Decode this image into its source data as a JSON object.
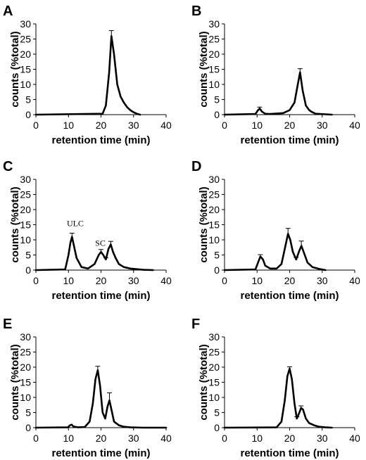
{
  "chart_data": [
    {
      "panel": "A",
      "type": "line",
      "xlabel": "retention time (min)",
      "ylabel": "counts (%total)",
      "xlim": [
        0,
        40
      ],
      "ylim": [
        0,
        30
      ],
      "xticks": [
        0,
        10,
        20,
        30,
        40
      ],
      "yticks": [
        0,
        5,
        10,
        15,
        20,
        25,
        30
      ],
      "x": [
        0,
        20.5,
        21.5,
        22.5,
        23.2,
        24,
        25,
        26,
        27,
        28,
        29,
        30,
        31,
        32
      ],
      "y": [
        0,
        0.3,
        3,
        14,
        26,
        20,
        10,
        6,
        4,
        2.5,
        1.5,
        0.8,
        0.3,
        0
      ],
      "error_bars": [
        {
          "x": 23.2,
          "y": 26,
          "err": 1.8
        }
      ],
      "annotations": []
    },
    {
      "panel": "B",
      "type": "line",
      "xlabel": "retention time (min)",
      "ylabel": "counts (%total)",
      "xlim": [
        0,
        40
      ],
      "ylim": [
        0,
        30
      ],
      "xticks": [
        0,
        10,
        20,
        30,
        40
      ],
      "yticks": [
        0,
        5,
        10,
        15,
        20,
        25,
        30
      ],
      "x": [
        0,
        9.5,
        10.3,
        10.8,
        11.5,
        12.5,
        14,
        18,
        20,
        21.5,
        22.5,
        23.2,
        24,
        25,
        26,
        27,
        28,
        33
      ],
      "y": [
        0,
        0.2,
        1.5,
        2,
        1,
        0.3,
        0.2,
        0.5,
        1.5,
        4,
        10,
        14,
        8,
        3,
        1.5,
        0.8,
        0.3,
        0
      ],
      "error_bars": [
        {
          "x": 10.8,
          "y": 2,
          "err": 0.5
        },
        {
          "x": 23.2,
          "y": 14,
          "err": 1.2
        }
      ],
      "annotations": []
    },
    {
      "panel": "C",
      "type": "line",
      "xlabel": "retention time (min)",
      "ylabel": "counts (%total)",
      "xlim": [
        0,
        40
      ],
      "ylim": [
        0,
        30
      ],
      "xticks": [
        0,
        10,
        20,
        30,
        40
      ],
      "yticks": [
        0,
        5,
        10,
        15,
        20,
        25,
        30
      ],
      "x": [
        0,
        9,
        10,
        10.6,
        11.1,
        11.7,
        12.5,
        14,
        16,
        18,
        19.3,
        20,
        20.7,
        21.5,
        22.3,
        23,
        23.7,
        24.5,
        25.5,
        27,
        29,
        31,
        33,
        36
      ],
      "y": [
        0,
        0.2,
        5,
        9,
        11,
        8,
        4,
        1,
        0.5,
        2,
        5,
        6,
        5,
        3.5,
        7,
        8.5,
        6,
        4,
        2,
        1,
        0.5,
        0.3,
        0.1,
        0
      ],
      "error_bars": [
        {
          "x": 11.1,
          "y": 11,
          "err": 1.2
        },
        {
          "x": 20,
          "y": 6,
          "err": 0.8
        },
        {
          "x": 21.5,
          "y": 3.5,
          "err": 0.6
        },
        {
          "x": 23,
          "y": 8.5,
          "err": 1.0
        }
      ],
      "annotations": [
        {
          "text": "ULC",
          "x": 9.5,
          "y": 14.5
        },
        {
          "text": "SC",
          "x": 18.2,
          "y": 8.0
        }
      ]
    },
    {
      "panel": "D",
      "type": "line",
      "xlabel": "retention time (min)",
      "ylabel": "counts (%total)",
      "xlim": [
        0,
        40
      ],
      "ylim": [
        0,
        30
      ],
      "xticks": [
        0,
        10,
        20,
        30,
        40
      ],
      "yticks": [
        0,
        5,
        10,
        15,
        20,
        25,
        30
      ],
      "x": [
        0,
        9.5,
        10.3,
        11,
        11.8,
        12.5,
        14,
        16,
        17.5,
        18.5,
        19.5,
        20.2,
        21,
        22,
        23,
        23.6,
        24.3,
        25.5,
        27,
        29,
        31
      ],
      "y": [
        0,
        0.2,
        2.5,
        4.5,
        3.5,
        1.5,
        0.5,
        0.5,
        2,
        7,
        12,
        10,
        6,
        3.5,
        6.5,
        8,
        6,
        2.5,
        1,
        0.4,
        0
      ],
      "error_bars": [
        {
          "x": 11,
          "y": 4.5,
          "err": 0.6
        },
        {
          "x": 19.5,
          "y": 12,
          "err": 1.8
        },
        {
          "x": 22,
          "y": 3.5,
          "err": 0.7
        },
        {
          "x": 23.6,
          "y": 8,
          "err": 1.6
        }
      ],
      "annotations": []
    },
    {
      "panel": "E",
      "type": "line",
      "xlabel": "retention time (min)",
      "ylabel": "counts (%total)",
      "xlim": [
        0,
        40
      ],
      "ylim": [
        0,
        30
      ],
      "xticks": [
        0,
        10,
        20,
        30,
        40
      ],
      "yticks": [
        0,
        5,
        10,
        15,
        20,
        25,
        30
      ],
      "x": [
        0,
        9.8,
        10.5,
        11,
        11.5,
        13,
        15,
        16.5,
        17.5,
        18.3,
        19,
        19.7,
        20.5,
        21.3,
        22,
        22.6,
        23.2,
        24,
        25.5,
        27,
        29,
        33,
        40
      ],
      "y": [
        0,
        0.1,
        0.8,
        1,
        0.4,
        0.1,
        0.2,
        2,
        8,
        16,
        19,
        14,
        5,
        3,
        7,
        9,
        6,
        2,
        0.8,
        0.3,
        0.1,
        0,
        0
      ],
      "error_bars": [
        {
          "x": 19,
          "y": 19,
          "err": 1.3
        },
        {
          "x": 22.6,
          "y": 9,
          "err": 2.5
        }
      ],
      "annotations": []
    },
    {
      "panel": "F",
      "type": "line",
      "xlabel": "retention time (min)",
      "ylabel": "counts (%total)",
      "xlim": [
        0,
        40
      ],
      "ylim": [
        0,
        30
      ],
      "xticks": [
        0,
        10,
        20,
        30,
        40
      ],
      "yticks": [
        0,
        5,
        10,
        15,
        20,
        25,
        30
      ],
      "x": [
        0,
        16,
        17.5,
        18.5,
        19.3,
        20,
        20.7,
        21.5,
        22.2,
        23,
        23.5,
        24.1,
        25,
        26,
        27.5,
        29,
        31,
        33
      ],
      "y": [
        0,
        0.1,
        2,
        9,
        17,
        19.5,
        16,
        8,
        3,
        5,
        6.5,
        6,
        3,
        1.5,
        0.8,
        0.3,
        0.1,
        0
      ],
      "error_bars": [
        {
          "x": 20,
          "y": 19.5,
          "err": 0.6
        },
        {
          "x": 22.2,
          "y": 3,
          "err": 0.6
        },
        {
          "x": 23.5,
          "y": 6.5,
          "err": 0.7
        }
      ],
      "annotations": []
    }
  ]
}
